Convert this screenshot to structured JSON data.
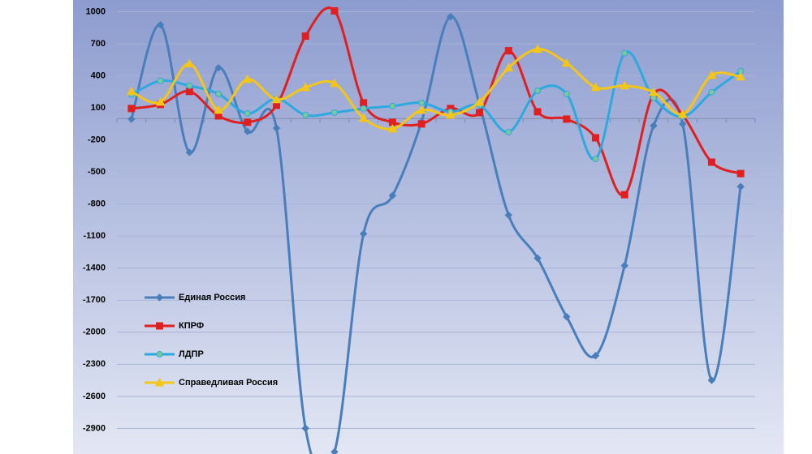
{
  "chart_data": {
    "type": "line",
    "categories": [
      null,
      null,
      null,
      null,
      null,
      null,
      null,
      null,
      null,
      null,
      null,
      null,
      null,
      null,
      null,
      null,
      null,
      null,
      null,
      null,
      null,
      null
    ],
    "series": [
      {
        "name": "Единая Россия",
        "color": "#4a7ebb",
        "marker": "diamond",
        "values": [
          -5,
          878,
          -317,
          475,
          -120,
          -90,
          -2900,
          -3120,
          -1079,
          -721,
          -30,
          954,
          130,
          -904,
          -1307,
          -1855,
          -2220,
          -1376,
          -66,
          -50,
          -2450,
          -637
        ]
      },
      {
        "name": "КПРФ",
        "color": "#e02020",
        "marker": "square",
        "values": [
          94,
          132,
          254,
          25,
          -35,
          124,
          772,
          1008,
          147,
          -35,
          -50,
          94,
          56,
          635,
          64,
          -5,
          -180,
          -713,
          231,
          33,
          -408,
          -515
        ]
      },
      {
        "name": "ЛДПР",
        "color": "#2ea9df",
        "marker": "circle",
        "values": [
          224,
          353,
          307,
          231,
          48,
          185,
          33,
          56,
          94,
          117,
          147,
          64,
          124,
          -127,
          261,
          231,
          -378,
          612,
          193,
          18,
          246,
          444
        ]
      },
      {
        "name": "Справедливая Россия",
        "color": "#f5c518",
        "marker": "triangle",
        "values": [
          254,
          155,
          513,
          79,
          368,
          178,
          292,
          330,
          3,
          -96,
          79,
          33,
          155,
          475,
          650,
          520,
          292,
          307,
          246,
          41,
          406,
          391
        ]
      }
    ],
    "ylim": [
      -3140,
      1110
    ],
    "yticks": [
      1000,
      700,
      400,
      100,
      -200,
      -500,
      -800,
      -1100,
      -1400,
      -1700,
      -2000,
      -2300,
      -2600,
      -2900
    ],
    "grid": true,
    "smooth": true,
    "legend": "lower left"
  }
}
